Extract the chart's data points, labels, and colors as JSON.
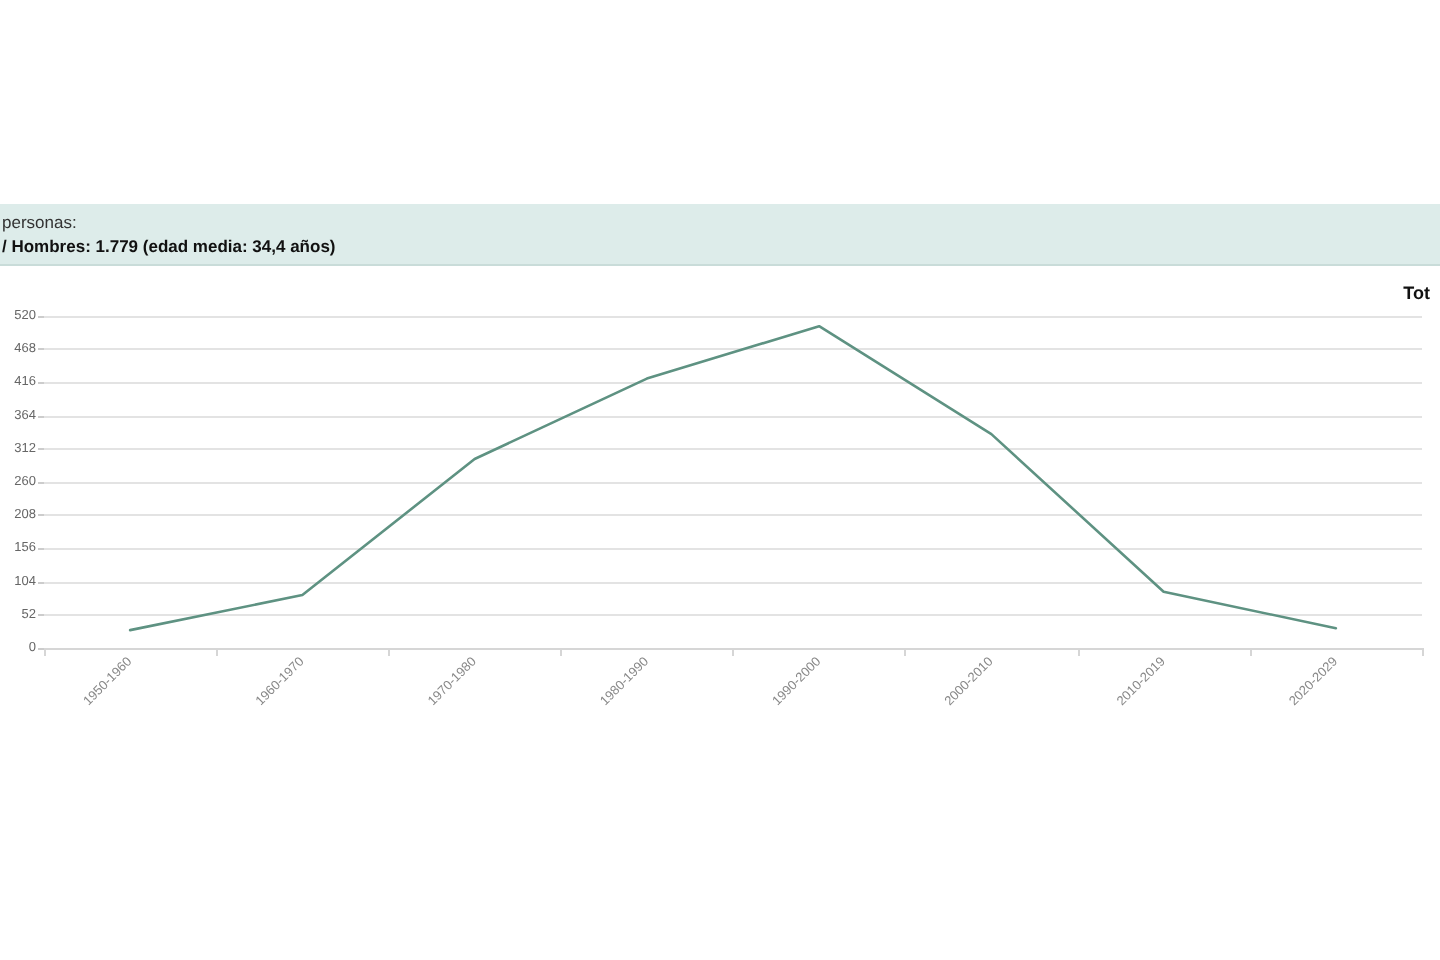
{
  "chart_data": {
    "type": "line",
    "title": "Tot",
    "annotations": [
      "personas:",
      "/ Hombres: 1.779 (edad media: 34,4 años)"
    ],
    "categories": [
      "1950-1960",
      "1960-1970",
      "1970-1980",
      "1980-1990",
      "1990-2000",
      "2000-2010",
      "2010-2019",
      "2020-2029"
    ],
    "series": [
      {
        "color": "#5e9282",
        "values": [
          28,
          83,
          296,
          422,
          504,
          335,
          88,
          31
        ]
      }
    ],
    "ylim": [
      0,
      520
    ],
    "yticks": [
      0,
      52,
      104,
      156,
      208,
      260,
      312,
      364,
      416,
      468,
      520
    ],
    "grid": "y",
    "marker": "none",
    "line_style": "solid"
  }
}
